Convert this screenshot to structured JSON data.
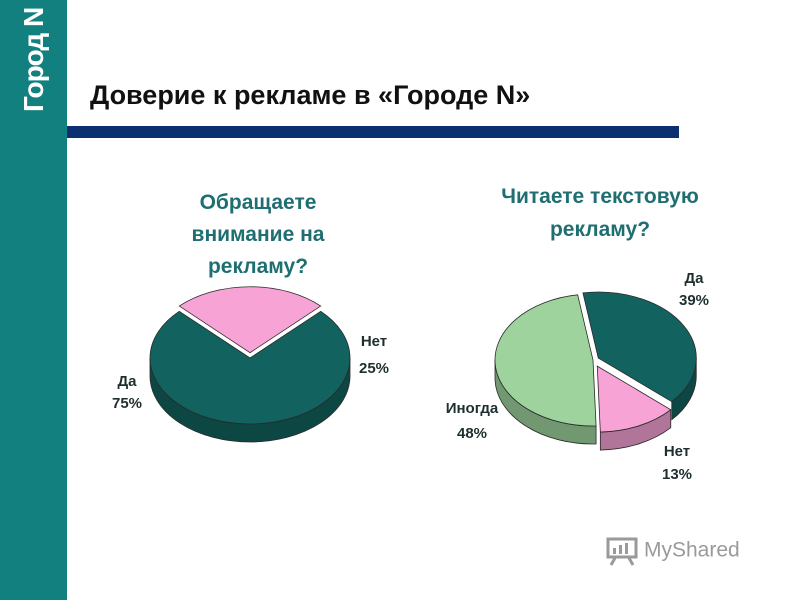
{
  "logo": "Город N",
  "title": "Доверие к рекламе в «Городе N»",
  "colors": {
    "sidebar": "#12807f",
    "title_bar": "#0c2f72",
    "teal": "#12625f",
    "pink": "#f7a3d6",
    "green": "#9fd39e"
  },
  "chart_data": [
    {
      "type": "pie",
      "title_lines": [
        "Обращаете",
        "внимание на",
        "рекламу?"
      ],
      "slices": [
        {
          "name": "Да",
          "value": 75,
          "pct": "75%",
          "color": "#12625f"
        },
        {
          "name": "Нет",
          "value": 25,
          "pct": "25%",
          "color": "#f7a3d6"
        }
      ]
    },
    {
      "type": "pie",
      "title_lines": [
        "Читаете текстовую",
        "рекламу?"
      ],
      "slices": [
        {
          "name": "Да",
          "value": 39,
          "pct": "39%",
          "color": "#12625f"
        },
        {
          "name": "Нет",
          "value": 13,
          "pct": "13%",
          "color": "#f7a3d6"
        },
        {
          "name": "Иногда",
          "value": 48,
          "pct": "48%",
          "color": "#9fd39e"
        }
      ]
    }
  ],
  "watermark": "MyShared"
}
